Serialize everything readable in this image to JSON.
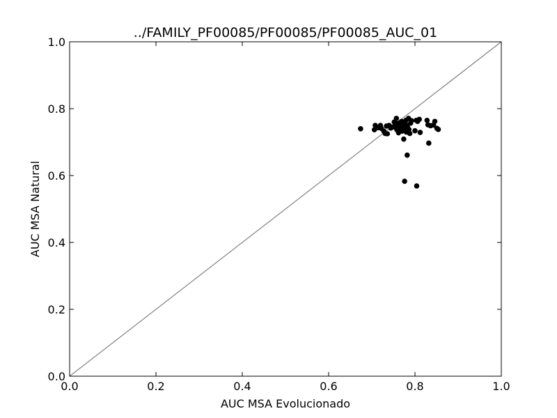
{
  "chart_data": {
    "type": "scatter",
    "title": "../FAMILY_PF00085/PF00085/PF00085_AUC_01",
    "xlabel": "AUC MSA Evolucionado",
    "ylabel": "AUC MSA Natural",
    "xlim": [
      0.0,
      1.0
    ],
    "ylim": [
      0.0,
      1.0
    ],
    "xticks": [
      "0.0",
      "0.2",
      "0.4",
      "0.6",
      "0.8",
      "1.0"
    ],
    "yticks": [
      "0.0",
      "0.2",
      "0.4",
      "0.6",
      "0.8",
      "1.0"
    ],
    "grid": false,
    "reference_line": {
      "from": [
        0.0,
        0.0
      ],
      "to": [
        1.0,
        1.0
      ],
      "color": "#808080"
    },
    "marker_color": "#000000",
    "series": [
      {
        "points": [
          [
            0.674,
            0.74
          ],
          [
            0.706,
            0.737
          ],
          [
            0.708,
            0.75
          ],
          [
            0.714,
            0.743
          ],
          [
            0.72,
            0.75
          ],
          [
            0.722,
            0.741
          ],
          [
            0.728,
            0.733
          ],
          [
            0.731,
            0.726
          ],
          [
            0.734,
            0.748
          ],
          [
            0.736,
            0.725
          ],
          [
            0.74,
            0.75
          ],
          [
            0.744,
            0.742
          ],
          [
            0.748,
            0.745
          ],
          [
            0.752,
            0.76
          ],
          [
            0.755,
            0.748
          ],
          [
            0.757,
            0.771
          ],
          [
            0.758,
            0.737
          ],
          [
            0.76,
            0.755
          ],
          [
            0.762,
            0.728
          ],
          [
            0.764,
            0.745
          ],
          [
            0.765,
            0.758
          ],
          [
            0.767,
            0.737
          ],
          [
            0.769,
            0.762
          ],
          [
            0.77,
            0.733
          ],
          [
            0.771,
            0.748
          ],
          [
            0.772,
            0.74
          ],
          [
            0.773,
            0.752
          ],
          [
            0.774,
            0.709
          ],
          [
            0.775,
            0.735
          ],
          [
            0.776,
            0.745
          ],
          [
            0.777,
            0.757
          ],
          [
            0.778,
            0.742
          ],
          [
            0.779,
            0.765
          ],
          [
            0.78,
            0.73
          ],
          [
            0.781,
            0.75
          ],
          [
            0.782,
            0.661
          ],
          [
            0.783,
            0.744
          ],
          [
            0.785,
            0.771
          ],
          [
            0.786,
            0.738
          ],
          [
            0.788,
            0.726
          ],
          [
            0.79,
            0.757
          ],
          [
            0.792,
            0.764
          ],
          [
            0.8,
            0.734
          ],
          [
            0.803,
            0.765
          ],
          [
            0.806,
            0.762
          ],
          [
            0.81,
            0.768
          ],
          [
            0.812,
            0.729
          ],
          [
            0.828,
            0.765
          ],
          [
            0.83,
            0.752
          ],
          [
            0.832,
            0.697
          ],
          [
            0.836,
            0.749
          ],
          [
            0.843,
            0.751
          ],
          [
            0.846,
            0.762
          ],
          [
            0.851,
            0.741
          ],
          [
            0.854,
            0.738
          ],
          [
            0.776,
            0.583
          ],
          [
            0.804,
            0.569
          ]
        ]
      }
    ]
  }
}
